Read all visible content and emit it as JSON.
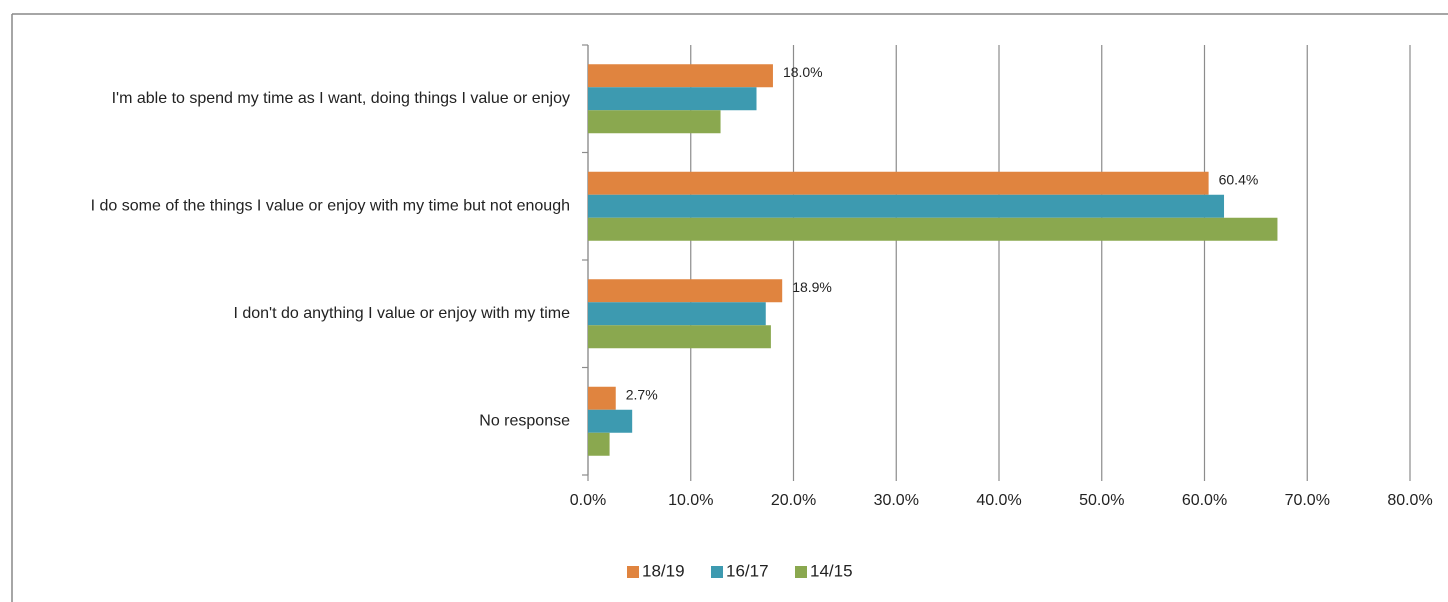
{
  "chart_data": {
    "type": "hbar",
    "categories": [
      "I'm able to spend my time as I want, doing things I value or enjoy",
      "I do some of the things I value or enjoy with my time but not enough",
      "I don't do anything I value or enjoy with my time",
      "No response"
    ],
    "series": [
      {
        "name": "18/19",
        "color": "#e0843f",
        "values": [
          18.0,
          60.4,
          18.9,
          2.7
        ],
        "value_labels": [
          "18.0%",
          "60.4%",
          "18.9%",
          "2.7%"
        ]
      },
      {
        "name": "16/17",
        "color": "#3d9ab0",
        "values": [
          16.4,
          61.9,
          17.3,
          4.3
        ]
      },
      {
        "name": "14/15",
        "color": "#8aa84f",
        "values": [
          12.9,
          67.1,
          17.8,
          2.1
        ]
      }
    ],
    "xlim": [
      0,
      80
    ],
    "xticks": [
      {
        "value": 0,
        "label": "0.0%"
      },
      {
        "value": 10,
        "label": "10.0%"
      },
      {
        "value": 20,
        "label": "20.0%"
      },
      {
        "value": 30,
        "label": "30.0%"
      },
      {
        "value": 40,
        "label": "40.0%"
      },
      {
        "value": 50,
        "label": "50.0%"
      },
      {
        "value": 60,
        "label": "60.0%"
      },
      {
        "value": 70,
        "label": "70.0%"
      },
      {
        "value": 80,
        "label": "80.0%"
      }
    ],
    "grid": true,
    "legend": "bottom"
  }
}
